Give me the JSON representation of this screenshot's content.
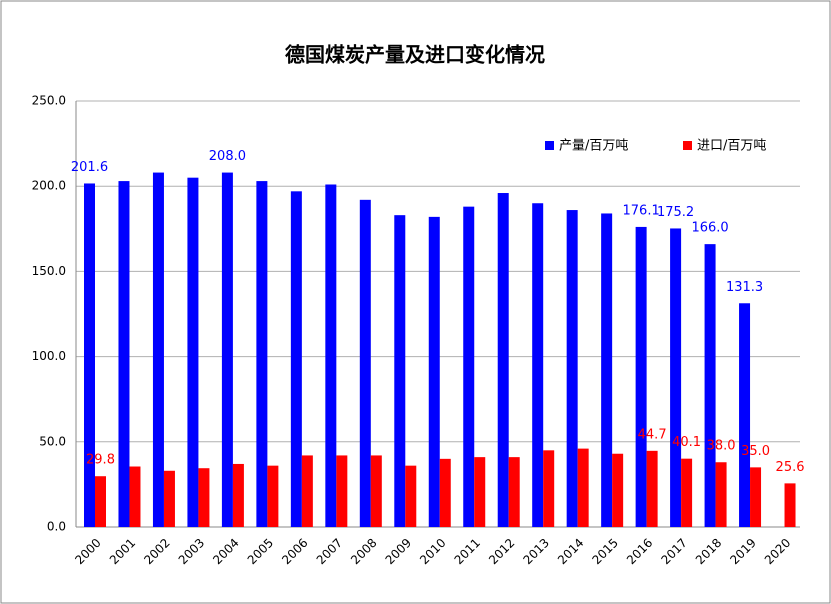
{
  "chart_data": {
    "type": "bar",
    "title": "德国煤炭产量及进口变化情况",
    "categories": [
      "2000",
      "2001",
      "2002",
      "2003",
      "2004",
      "2005",
      "2006",
      "2007",
      "2008",
      "2009",
      "2010",
      "2011",
      "2012",
      "2013",
      "2014",
      "2015",
      "2016",
      "2017",
      "2018",
      "2019",
      "2020"
    ],
    "series": [
      {
        "name": "产量/百万吨",
        "color": "#0000ff",
        "values": [
          201.6,
          203,
          208,
          205,
          208.0,
          203,
          197,
          201,
          192,
          183,
          182,
          188,
          196,
          190,
          186,
          184,
          176.1,
          175.2,
          166.0,
          131.3,
          null
        ],
        "value_labels": [
          "201.6",
          null,
          null,
          null,
          "208.0",
          null,
          null,
          null,
          null,
          null,
          null,
          null,
          null,
          null,
          null,
          null,
          "176.1",
          "175.2",
          "166.0",
          "131.3",
          null
        ]
      },
      {
        "name": "进口/百万吨",
        "color": "#ff0000",
        "values": [
          29.8,
          35.5,
          33,
          34.5,
          37,
          36,
          42,
          42,
          42,
          36,
          40,
          41,
          41,
          45,
          46,
          43,
          44.7,
          40.1,
          38.0,
          35.0,
          25.6
        ],
        "value_labels": [
          "29.8",
          null,
          null,
          null,
          null,
          null,
          null,
          null,
          null,
          null,
          null,
          null,
          null,
          null,
          null,
          null,
          "44.7",
          "40.1",
          "38.0",
          "35.0",
          "25.6"
        ]
      }
    ],
    "ylim": [
      0,
      250
    ],
    "yticks": [
      {
        "value": 0,
        "label": "0.0"
      },
      {
        "value": 50,
        "label": "50.0"
      },
      {
        "value": 100,
        "label": "100.0"
      },
      {
        "value": 150,
        "label": "150.0"
      },
      {
        "value": 200,
        "label": "200.0"
      },
      {
        "value": 250,
        "label": "250.0"
      }
    ],
    "grid": true,
    "legend": "top-right"
  }
}
